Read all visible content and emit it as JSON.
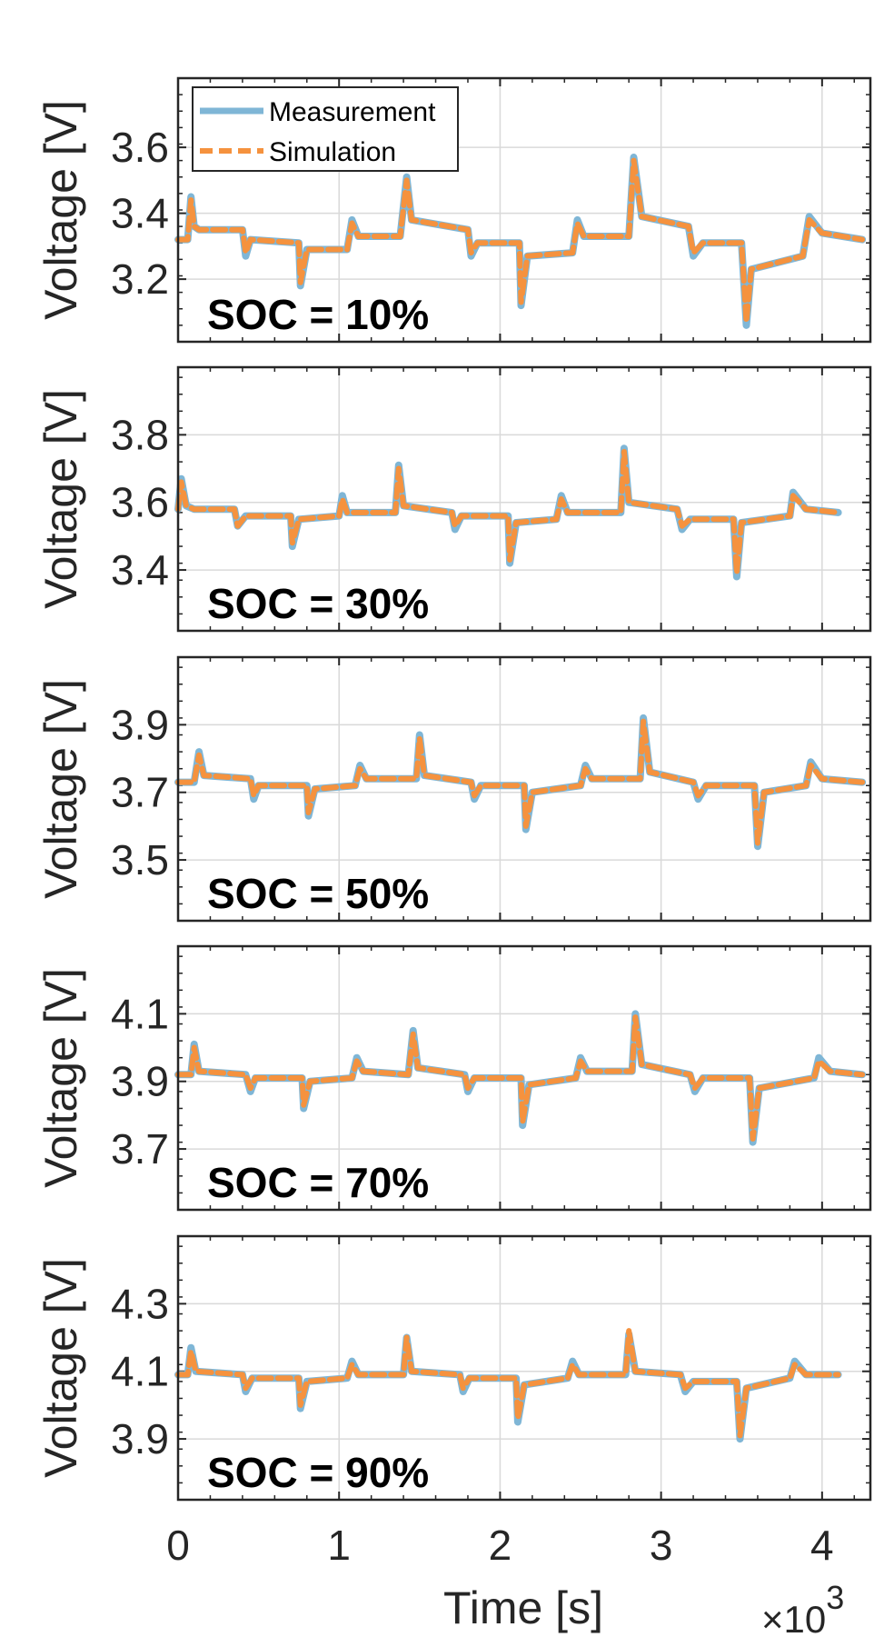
{
  "colors": {
    "measurement": "#7fb6d6",
    "simulation": "#f5923e",
    "grid": "#d9d9d9",
    "axis": "#262626"
  },
  "x_axis": {
    "label": "Time [s]",
    "exponent_label": "×10",
    "exponent_power": "3",
    "ticks": [
      0,
      1,
      2,
      3,
      4
    ],
    "tick_labels": [
      "0",
      "1",
      "2",
      "3",
      "4"
    ],
    "range": [
      0,
      4.3
    ]
  },
  "chart_data": [
    {
      "type": "line",
      "annotation": "SOC = 10%",
      "ylabel": "Voltage [V]",
      "ylim": [
        3.01,
        3.81
      ],
      "yticks": [
        3.2,
        3.4,
        3.6
      ],
      "ytick_labels": [
        "3.2",
        "3.4",
        "3.6"
      ],
      "base": 3.32,
      "legend": {
        "position": "top-left",
        "entries": [
          "Measurement",
          "Simulation"
        ]
      },
      "series": [
        {
          "name": "Measurement",
          "x": [
            0,
            0.06,
            0.08,
            0.1,
            0.13,
            0.4,
            0.42,
            0.45,
            0.75,
            0.76,
            0.8,
            1.05,
            1.08,
            1.12,
            1.38,
            1.42,
            1.45,
            1.8,
            1.82,
            1.86,
            2.12,
            2.13,
            2.17,
            2.45,
            2.48,
            2.52,
            2.8,
            2.83,
            2.88,
            3.17,
            3.2,
            3.26,
            3.5,
            3.53,
            3.56,
            3.88,
            3.92,
            4.0,
            4.25
          ],
          "y": [
            3.32,
            3.32,
            3.45,
            3.36,
            3.35,
            3.35,
            3.27,
            3.32,
            3.31,
            3.18,
            3.29,
            3.29,
            3.38,
            3.33,
            3.33,
            3.51,
            3.38,
            3.35,
            3.27,
            3.31,
            3.31,
            3.12,
            3.27,
            3.28,
            3.38,
            3.33,
            3.33,
            3.57,
            3.39,
            3.36,
            3.27,
            3.31,
            3.31,
            3.06,
            3.23,
            3.27,
            3.39,
            3.34,
            3.32
          ]
        },
        {
          "name": "Simulation",
          "x": [
            0,
            0.06,
            0.08,
            0.1,
            0.13,
            0.4,
            0.42,
            0.45,
            0.75,
            0.76,
            0.8,
            1.05,
            1.08,
            1.12,
            1.38,
            1.42,
            1.45,
            1.8,
            1.82,
            1.86,
            2.12,
            2.13,
            2.17,
            2.45,
            2.48,
            2.52,
            2.8,
            2.83,
            2.88,
            3.17,
            3.2,
            3.26,
            3.5,
            3.53,
            3.56,
            3.88,
            3.92,
            4.0,
            4.25
          ],
          "y": [
            3.32,
            3.32,
            3.44,
            3.36,
            3.35,
            3.35,
            3.28,
            3.32,
            3.31,
            3.19,
            3.29,
            3.29,
            3.37,
            3.33,
            3.33,
            3.5,
            3.38,
            3.35,
            3.28,
            3.31,
            3.31,
            3.13,
            3.27,
            3.28,
            3.37,
            3.33,
            3.33,
            3.56,
            3.39,
            3.36,
            3.28,
            3.31,
            3.31,
            3.07,
            3.23,
            3.27,
            3.38,
            3.34,
            3.32
          ]
        }
      ]
    },
    {
      "type": "line",
      "annotation": "SOC = 30%",
      "ylabel": "Voltage [V]",
      "ylim": [
        3.22,
        4.0
      ],
      "yticks": [
        3.4,
        3.6,
        3.8
      ],
      "ytick_labels": [
        "3.4",
        "3.6",
        "3.8"
      ],
      "base": 3.58,
      "series": [
        {
          "name": "Measurement",
          "x": [
            0,
            0.02,
            0.05,
            0.1,
            0.35,
            0.37,
            0.42,
            0.7,
            0.71,
            0.75,
            1.0,
            1.02,
            1.05,
            1.35,
            1.37,
            1.4,
            1.7,
            1.72,
            1.76,
            2.05,
            2.06,
            2.1,
            2.35,
            2.38,
            2.42,
            2.75,
            2.77,
            2.8,
            3.1,
            3.13,
            3.18,
            3.45,
            3.47,
            3.5,
            3.8,
            3.82,
            3.9,
            4.1
          ],
          "y": [
            3.58,
            3.67,
            3.59,
            3.58,
            3.58,
            3.53,
            3.56,
            3.56,
            3.47,
            3.55,
            3.56,
            3.62,
            3.57,
            3.57,
            3.71,
            3.59,
            3.57,
            3.52,
            3.56,
            3.56,
            3.42,
            3.54,
            3.55,
            3.62,
            3.57,
            3.57,
            3.76,
            3.6,
            3.58,
            3.52,
            3.55,
            3.55,
            3.38,
            3.54,
            3.56,
            3.63,
            3.58,
            3.57
          ]
        },
        {
          "name": "Simulation",
          "x": [
            0,
            0.02,
            0.05,
            0.1,
            0.35,
            0.37,
            0.42,
            0.7,
            0.71,
            0.75,
            1.0,
            1.02,
            1.05,
            1.35,
            1.37,
            1.4,
            1.7,
            1.72,
            1.76,
            2.05,
            2.06,
            2.1,
            2.35,
            2.38,
            2.42,
            2.75,
            2.77,
            2.8,
            3.1,
            3.13,
            3.18,
            3.45,
            3.47,
            3.5,
            3.8,
            3.82,
            3.9,
            4.1
          ],
          "y": [
            3.58,
            3.66,
            3.59,
            3.58,
            3.58,
            3.53,
            3.56,
            3.56,
            3.48,
            3.55,
            3.56,
            3.61,
            3.57,
            3.57,
            3.7,
            3.59,
            3.57,
            3.53,
            3.56,
            3.56,
            3.43,
            3.54,
            3.55,
            3.61,
            3.57,
            3.57,
            3.75,
            3.6,
            3.58,
            3.53,
            3.55,
            3.55,
            3.39,
            3.54,
            3.56,
            3.62,
            3.58,
            3.57
          ]
        }
      ]
    },
    {
      "type": "line",
      "annotation": "SOC = 50%",
      "ylabel": "Voltage [V]",
      "ylim": [
        3.32,
        4.1
      ],
      "yticks": [
        3.5,
        3.7,
        3.9
      ],
      "ytick_labels": [
        "3.5",
        "3.7",
        "3.9"
      ],
      "base": 3.73,
      "series": [
        {
          "name": "Measurement",
          "x": [
            0,
            0.1,
            0.13,
            0.16,
            0.45,
            0.47,
            0.5,
            0.8,
            0.81,
            0.85,
            1.1,
            1.13,
            1.17,
            1.48,
            1.5,
            1.53,
            1.82,
            1.84,
            1.88,
            2.15,
            2.16,
            2.2,
            2.5,
            2.53,
            2.57,
            2.87,
            2.89,
            2.93,
            3.2,
            3.23,
            3.28,
            3.58,
            3.6,
            3.64,
            3.9,
            3.93,
            4.0,
            4.25
          ],
          "y": [
            3.73,
            3.73,
            3.82,
            3.75,
            3.74,
            3.68,
            3.72,
            3.72,
            3.63,
            3.71,
            3.72,
            3.78,
            3.74,
            3.74,
            3.87,
            3.75,
            3.73,
            3.68,
            3.72,
            3.72,
            3.59,
            3.7,
            3.72,
            3.78,
            3.74,
            3.74,
            3.92,
            3.76,
            3.73,
            3.68,
            3.72,
            3.72,
            3.54,
            3.7,
            3.72,
            3.79,
            3.74,
            3.73
          ]
        },
        {
          "name": "Simulation",
          "x": [
            0,
            0.1,
            0.13,
            0.16,
            0.45,
            0.47,
            0.5,
            0.8,
            0.81,
            0.85,
            1.1,
            1.13,
            1.17,
            1.48,
            1.5,
            1.53,
            1.82,
            1.84,
            1.88,
            2.15,
            2.16,
            2.2,
            2.5,
            2.53,
            2.57,
            2.87,
            2.89,
            2.93,
            3.2,
            3.23,
            3.28,
            3.58,
            3.6,
            3.64,
            3.9,
            3.93,
            4.0,
            4.25
          ],
          "y": [
            3.73,
            3.73,
            3.81,
            3.75,
            3.74,
            3.69,
            3.72,
            3.72,
            3.64,
            3.71,
            3.72,
            3.77,
            3.74,
            3.74,
            3.86,
            3.75,
            3.73,
            3.69,
            3.72,
            3.72,
            3.6,
            3.7,
            3.72,
            3.77,
            3.74,
            3.74,
            3.91,
            3.76,
            3.73,
            3.69,
            3.72,
            3.72,
            3.55,
            3.7,
            3.72,
            3.78,
            3.74,
            3.73
          ]
        }
      ]
    },
    {
      "type": "line",
      "annotation": "SOC = 70%",
      "ylabel": "Voltage [V]",
      "ylim": [
        3.52,
        4.3
      ],
      "yticks": [
        3.7,
        3.9,
        4.1
      ],
      "ytick_labels": [
        "3.7",
        "3.9",
        "4.1"
      ],
      "base": 3.92,
      "series": [
        {
          "name": "Measurement",
          "x": [
            0,
            0.08,
            0.1,
            0.13,
            0.42,
            0.45,
            0.48,
            0.77,
            0.78,
            0.82,
            1.08,
            1.11,
            1.15,
            1.43,
            1.46,
            1.49,
            1.78,
            1.8,
            1.84,
            2.13,
            2.14,
            2.18,
            2.47,
            2.5,
            2.54,
            2.82,
            2.84,
            2.88,
            3.18,
            3.21,
            3.26,
            3.55,
            3.57,
            3.61,
            3.95,
            3.98,
            4.05,
            4.25
          ],
          "y": [
            3.92,
            3.92,
            4.01,
            3.93,
            3.92,
            3.87,
            3.91,
            3.91,
            3.82,
            3.9,
            3.91,
            3.97,
            3.93,
            3.92,
            4.05,
            3.94,
            3.92,
            3.87,
            3.91,
            3.91,
            3.77,
            3.89,
            3.91,
            3.97,
            3.93,
            3.93,
            4.1,
            3.95,
            3.92,
            3.87,
            3.91,
            3.91,
            3.72,
            3.88,
            3.91,
            3.97,
            3.93,
            3.92
          ]
        },
        {
          "name": "Simulation",
          "x": [
            0,
            0.08,
            0.1,
            0.13,
            0.42,
            0.45,
            0.48,
            0.77,
            0.78,
            0.82,
            1.08,
            1.11,
            1.15,
            1.43,
            1.46,
            1.49,
            1.78,
            1.8,
            1.84,
            2.13,
            2.14,
            2.18,
            2.47,
            2.5,
            2.54,
            2.82,
            2.84,
            2.88,
            3.18,
            3.21,
            3.26,
            3.55,
            3.57,
            3.61,
            3.95,
            3.98,
            4.05,
            4.25
          ],
          "y": [
            3.92,
            3.92,
            4.0,
            3.93,
            3.92,
            3.88,
            3.91,
            3.91,
            3.83,
            3.9,
            3.91,
            3.96,
            3.93,
            3.92,
            4.04,
            3.94,
            3.92,
            3.88,
            3.91,
            3.91,
            3.78,
            3.89,
            3.91,
            3.96,
            3.93,
            3.93,
            4.09,
            3.95,
            3.92,
            3.88,
            3.91,
            3.91,
            3.73,
            3.88,
            3.91,
            3.96,
            3.93,
            3.92
          ]
        }
      ]
    },
    {
      "type": "line",
      "annotation": "SOC = 90%",
      "ylabel": "Voltage [V]",
      "ylim": [
        3.72,
        4.5
      ],
      "yticks": [
        3.9,
        4.1,
        4.3
      ],
      "ytick_labels": [
        "3.9",
        "4.1",
        "4.3"
      ],
      "base": 4.09,
      "series": [
        {
          "name": "Measurement",
          "x": [
            0,
            0.06,
            0.08,
            0.11,
            0.4,
            0.42,
            0.46,
            0.75,
            0.76,
            0.8,
            1.05,
            1.08,
            1.12,
            1.4,
            1.42,
            1.45,
            1.75,
            1.77,
            1.81,
            2.1,
            2.11,
            2.15,
            2.42,
            2.45,
            2.49,
            2.78,
            2.8,
            2.84,
            3.12,
            3.15,
            3.2,
            3.47,
            3.49,
            3.53,
            3.8,
            3.83,
            3.9,
            4.1
          ],
          "y": [
            4.09,
            4.09,
            4.17,
            4.1,
            4.09,
            4.04,
            4.08,
            4.08,
            3.99,
            4.07,
            4.08,
            4.13,
            4.09,
            4.09,
            4.2,
            4.1,
            4.09,
            4.04,
            4.08,
            4.08,
            3.95,
            4.06,
            4.08,
            4.13,
            4.09,
            4.09,
            4.21,
            4.1,
            4.09,
            4.04,
            4.07,
            4.07,
            3.9,
            4.05,
            4.08,
            4.13,
            4.09,
            4.09
          ]
        },
        {
          "name": "Simulation",
          "x": [
            0,
            0.06,
            0.08,
            0.11,
            0.4,
            0.42,
            0.46,
            0.75,
            0.76,
            0.8,
            1.05,
            1.08,
            1.12,
            1.4,
            1.42,
            1.45,
            1.75,
            1.77,
            1.81,
            2.1,
            2.11,
            2.15,
            2.42,
            2.45,
            2.49,
            2.78,
            2.8,
            2.84,
            3.12,
            3.15,
            3.2,
            3.47,
            3.49,
            3.53,
            3.8,
            3.83,
            3.9,
            4.1
          ],
          "y": [
            4.09,
            4.09,
            4.16,
            4.1,
            4.09,
            4.05,
            4.08,
            4.08,
            4.0,
            4.07,
            4.08,
            4.12,
            4.09,
            4.09,
            4.2,
            4.1,
            4.09,
            4.05,
            4.08,
            4.08,
            3.96,
            4.06,
            4.08,
            4.12,
            4.09,
            4.09,
            4.22,
            4.1,
            4.09,
            4.05,
            4.07,
            4.07,
            3.91,
            4.05,
            4.08,
            4.12,
            4.09,
            4.09
          ]
        }
      ]
    }
  ]
}
